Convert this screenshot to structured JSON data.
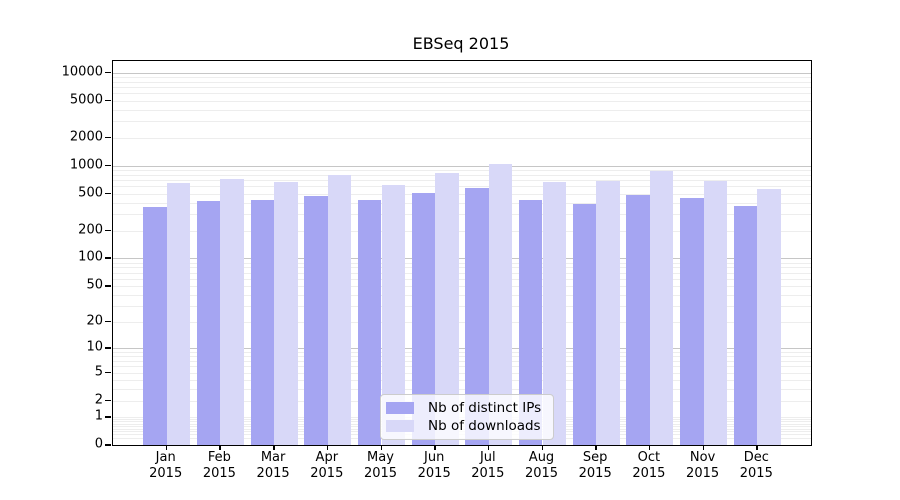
{
  "title": "EBSeq 2015",
  "legend": {
    "items": [
      {
        "label": "Nb of distinct IPs"
      },
      {
        "label": "Nb of downloads"
      }
    ]
  },
  "y_axis": {
    "ticks": [
      {
        "label": "0",
        "value": 0
      },
      {
        "label": "1",
        "value": 1
      },
      {
        "label": "2",
        "value": 2
      },
      {
        "label": "5",
        "value": 5
      },
      {
        "label": "10",
        "value": 10
      },
      {
        "label": "20",
        "value": 20
      },
      {
        "label": "50",
        "value": 50
      },
      {
        "label": "100",
        "value": 100
      },
      {
        "label": "200",
        "value": 200
      },
      {
        "label": "500",
        "value": 500
      },
      {
        "label": "1000",
        "value": 1000
      },
      {
        "label": "2000",
        "value": 2000
      },
      {
        "label": "5000",
        "value": 5000
      },
      {
        "label": "10000",
        "value": 10000
      }
    ]
  },
  "x_axis": {
    "year": "2015",
    "months": [
      "Jan",
      "Feb",
      "Mar",
      "Apr",
      "May",
      "Jun",
      "Jul",
      "Aug",
      "Sep",
      "Oct",
      "Nov",
      "Dec"
    ]
  },
  "chart_data": {
    "type": "bar",
    "title": "EBSeq 2015",
    "categories": [
      "Jan 2015",
      "Feb 2015",
      "Mar 2015",
      "Apr 2015",
      "May 2015",
      "Jun 2015",
      "Jul 2015",
      "Aug 2015",
      "Sep 2015",
      "Oct 2015",
      "Nov 2015",
      "Dec 2015"
    ],
    "series": [
      {
        "name": "Nb of distinct IPs",
        "color": "#a5a5f2",
        "values": [
          356,
          420,
          432,
          475,
          427,
          505,
          570,
          432,
          385,
          487,
          445,
          368
        ]
      },
      {
        "name": "Nb of downloads",
        "color": "#d8d8f8",
        "values": [
          645,
          719,
          672,
          800,
          620,
          828,
          1032,
          670,
          685,
          872,
          677,
          566
        ]
      }
    ],
    "yscale": "log1p",
    "ylim": [
      0,
      13300
    ],
    "y_ticks": [
      0,
      1,
      2,
      5,
      10,
      20,
      50,
      100,
      200,
      500,
      1000,
      2000,
      5000,
      10000
    ],
    "grid": true,
    "legend_position": "lower center"
  },
  "colors": {
    "bar_ips": "#a5a5f2",
    "bar_downloads": "#d8d8f8",
    "grid_major": "#c6c6c6",
    "grid_minor": "#ededed",
    "axis_line": "#000000",
    "background": "#ffffff",
    "text": "#000000"
  }
}
